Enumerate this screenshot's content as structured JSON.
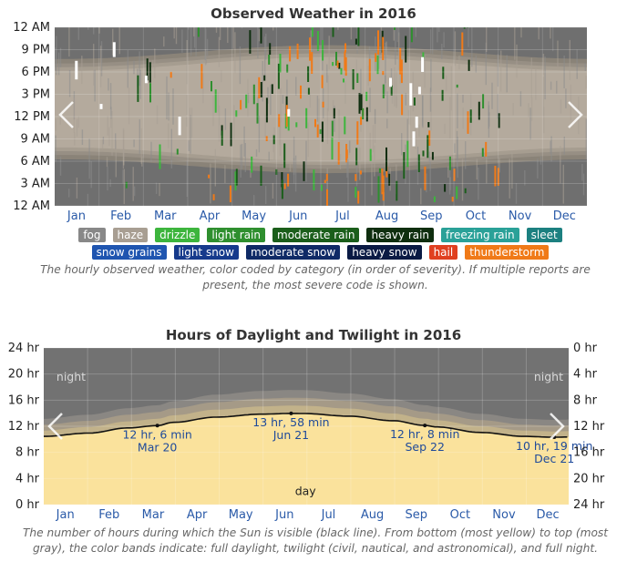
{
  "colors": {
    "fog": "#888888",
    "haze": "#a89e92",
    "drizzle": "#3db53d",
    "light_rain": "#2f8f2f",
    "moderate_rain": "#1b5e1b",
    "heavy_rain": "#0f2e0f",
    "freezing_rain": "#2aa198",
    "sleet": "#1c8080",
    "snow_grains": "#1f55b0",
    "light_snow": "#163a8c",
    "moderate_snow": "#0f2a66",
    "heavy_snow": "#0a1a44",
    "hail": "#e04020",
    "thunderstorm": "#f07a18",
    "night": "#727272",
    "daylight": "#fae29c",
    "month_label": "#2a5aa8"
  },
  "chart_data": [
    {
      "type": "heatmap",
      "title": "Observed Weather in 2016",
      "y_ticks": [
        "12 AM",
        "3 AM",
        "6 AM",
        "9 AM",
        "12 PM",
        "3 PM",
        "6 PM",
        "9 PM",
        "12 AM"
      ],
      "x_ticks": [
        "Jan",
        "Feb",
        "Mar",
        "Apr",
        "May",
        "Jun",
        "Jul",
        "Aug",
        "Sep",
        "Oct",
        "Nov",
        "Dec"
      ],
      "legend": [
        {
          "key": "fog",
          "label": "fog"
        },
        {
          "key": "haze",
          "label": "haze"
        },
        {
          "key": "drizzle",
          "label": "drizzle"
        },
        {
          "key": "light_rain",
          "label": "light rain"
        },
        {
          "key": "moderate_rain",
          "label": "moderate rain"
        },
        {
          "key": "heavy_rain",
          "label": "heavy rain"
        },
        {
          "key": "freezing_rain",
          "label": "freezing rain"
        },
        {
          "key": "sleet",
          "label": "sleet"
        },
        {
          "key": "snow_grains",
          "label": "snow grains"
        },
        {
          "key": "light_snow",
          "label": "light snow"
        },
        {
          "key": "moderate_snow",
          "label": "moderate snow"
        },
        {
          "key": "heavy_snow",
          "label": "heavy snow"
        },
        {
          "key": "hail",
          "label": "hail"
        },
        {
          "key": "thunderstorm",
          "label": "thunderstorm"
        }
      ],
      "caption": "The hourly observed weather, color coded by category (in order of severity). If multiple reports are present, the most severe code is shown."
    },
    {
      "type": "area",
      "title": "Hours of Daylight and Twilight in 2016",
      "y_left_ticks": [
        "0 hr",
        "4 hr",
        "8 hr",
        "12 hr",
        "16 hr",
        "20 hr",
        "24 hr"
      ],
      "y_right_ticks": [
        "24 hr",
        "20 hr",
        "16 hr",
        "12 hr",
        "8 hr",
        "4 hr",
        "0 hr"
      ],
      "ylim": [
        0,
        24
      ],
      "x_ticks": [
        "Jan",
        "Feb",
        "Mar",
        "Apr",
        "May",
        "Jun",
        "Jul",
        "Aug",
        "Sep",
        "Oct",
        "Nov",
        "Dec"
      ],
      "daylight_hours_by_day": [
        [
          1,
          10.45
        ],
        [
          32,
          10.95
        ],
        [
          60,
          11.75
        ],
        [
          80,
          12.1
        ],
        [
          91,
          12.6
        ],
        [
          121,
          13.4
        ],
        [
          152,
          13.85
        ],
        [
          173,
          13.97
        ],
        [
          182,
          13.95
        ],
        [
          213,
          13.55
        ],
        [
          244,
          12.85
        ],
        [
          266,
          12.13
        ],
        [
          274,
          11.9
        ],
        [
          305,
          11.05
        ],
        [
          335,
          10.45
        ],
        [
          356,
          10.32
        ],
        [
          366,
          10.36
        ]
      ],
      "annotations": [
        {
          "day": 80,
          "hours": 12.1,
          "line1": "12 hr, 6 min",
          "line2": "Mar 20"
        },
        {
          "day": 173,
          "hours": 13.97,
          "line1": "13 hr, 58 min",
          "line2": "Jun 21"
        },
        {
          "day": 266,
          "hours": 12.13,
          "line1": "12 hr, 8 min",
          "line2": "Sep 22"
        },
        {
          "day": 356,
          "hours": 10.32,
          "line1": "10 hr, 19 min",
          "line2": "Dec 21"
        }
      ],
      "region_labels": {
        "night_left": "night",
        "night_right": "night",
        "day": "day"
      },
      "caption": "The number of hours during which the Sun is visible (black line). From bottom (most yellow) to top (most gray), the color bands indicate: full daylight, twilight (civil, nautical, and astronomical), and full night."
    }
  ]
}
